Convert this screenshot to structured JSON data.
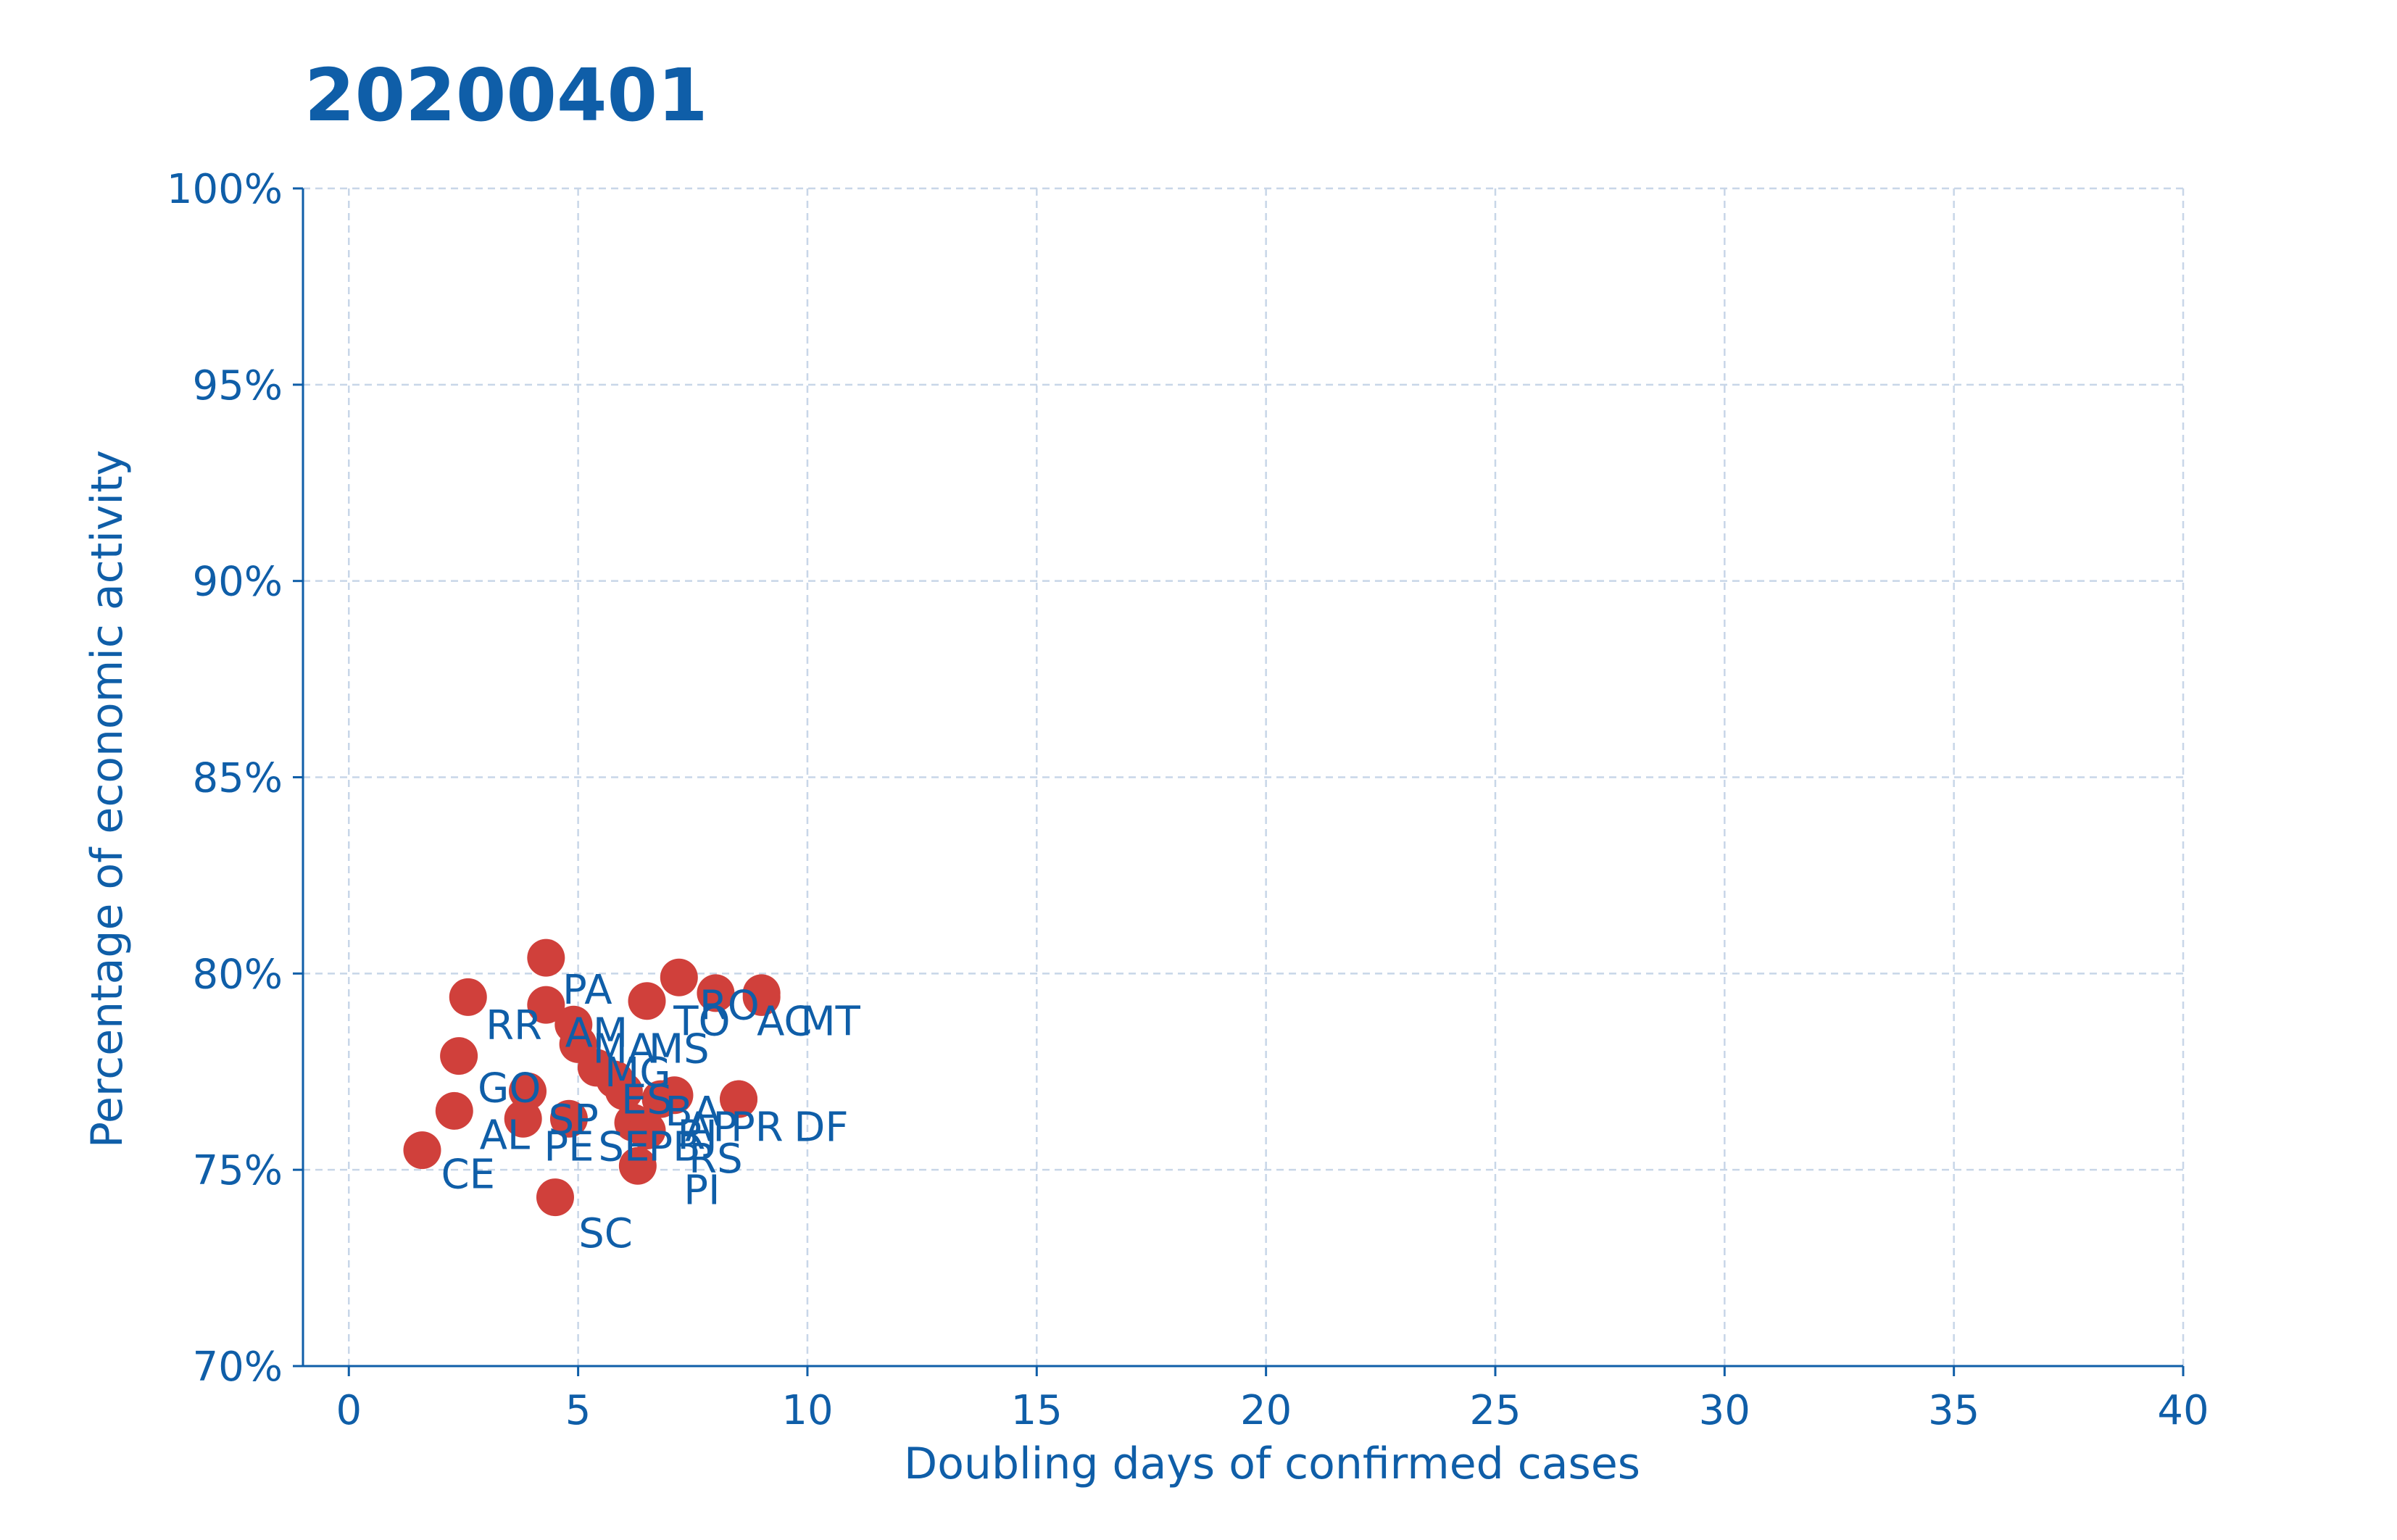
{
  "chart_data": {
    "type": "scatter",
    "title": "20200401",
    "xlabel": "Doubling days of confirmed cases",
    "ylabel": "Percentage of economic activity",
    "xlim": [
      -1,
      40
    ],
    "ylim": [
      70,
      100
    ],
    "x_ticks": [
      0,
      5,
      10,
      15,
      20,
      25,
      30,
      35,
      40
    ],
    "x_tick_labels": [
      "0",
      "5",
      "10",
      "15",
      "20",
      "25",
      "30",
      "35",
      "40"
    ],
    "y_ticks": [
      70,
      75,
      80,
      85,
      90,
      95,
      100
    ],
    "y_tick_labels": [
      "70%",
      "75%",
      "80%",
      "85%",
      "90%",
      "95%",
      "100%"
    ],
    "grid": true,
    "point_color": "#d0403b",
    "text_color": "#0f5ea8",
    "grid_color": "#c8d6e8",
    "points": [
      {
        "label": "CE",
        "x": 1.6,
        "y": 75.5
      },
      {
        "label": "AL",
        "x": 2.3,
        "y": 76.5
      },
      {
        "label": "RR",
        "x": 2.4,
        "y": 77.9
      },
      {
        "label": "PA",
        "x": 2.6,
        "y": 79.4
      },
      {
        "label": "GO",
        "x": 3.9,
        "y": 77.0
      },
      {
        "label": "PE",
        "x": 3.8,
        "y": 76.3
      },
      {
        "label": "SP",
        "x": 4.8,
        "y": 76.3
      },
      {
        "label": "SC",
        "x": 4.5,
        "y": 74.3
      },
      {
        "label": "AM",
        "x": 4.3,
        "y": 79.2
      },
      {
        "label": "",
        "x": 4.3,
        "y": 80.4
      },
      {
        "label": "MA",
        "x": 4.9,
        "y": 78.7
      },
      {
        "label": "MS",
        "x": 5.0,
        "y": 78.2
      },
      {
        "label": "MG",
        "x": 5.4,
        "y": 77.6
      },
      {
        "label": "ES",
        "x": 5.8,
        "y": 77.3
      },
      {
        "label": "SE",
        "x": 6.0,
        "y": 77.0
      },
      {
        "label": "PB",
        "x": 6.2,
        "y": 76.2
      },
      {
        "label": "RS",
        "x": 6.3,
        "y": 75.1
      },
      {
        "label": "PI",
        "x": 6.5,
        "y": 76.0
      },
      {
        "label": "BA",
        "x": 6.8,
        "y": 76.8
      },
      {
        "label": "RJ",
        "x": 7.1,
        "y": 76.9
      },
      {
        "label": "AP",
        "x": 6.5,
        "y": 79.3
      },
      {
        "label": "RO",
        "x": 7.2,
        "y": 79.9
      },
      {
        "label": "TO",
        "x": 8.0,
        "y": 79.5
      },
      {
        "label": "AC",
        "x": 9.0,
        "y": 79.5
      },
      {
        "label": "MT",
        "x": 9.0,
        "y": 79.4
      },
      {
        "label": "PR",
        "x": 8.5,
        "y": 76.8
      },
      {
        "label": "DF",
        "x": 8.5,
        "y": 76.8
      }
    ],
    "labels": [
      {
        "text": "PA",
        "x": 5.2,
        "y": 79.6
      },
      {
        "text": "RO",
        "x": 8.3,
        "y": 79.2
      },
      {
        "text": "TO",
        "x": 7.7,
        "y": 78.8
      },
      {
        "text": "AC",
        "x": 9.5,
        "y": 78.8
      },
      {
        "text": "MT",
        "x": 10.5,
        "y": 78.8
      },
      {
        "text": "RR",
        "x": 3.6,
        "y": 78.7
      },
      {
        "text": "AM",
        "x": 5.4,
        "y": 78.5
      },
      {
        "text": "MA",
        "x": 6.0,
        "y": 78.1
      },
      {
        "text": "MS",
        "x": 7.2,
        "y": 78.1
      },
      {
        "text": "MG",
        "x": 6.3,
        "y": 77.5
      },
      {
        "text": "GO",
        "x": 3.5,
        "y": 77.1
      },
      {
        "text": "ES",
        "x": 6.5,
        "y": 76.8
      },
      {
        "text": "BA",
        "x": 7.5,
        "y": 76.5
      },
      {
        "text": "SP",
        "x": 4.9,
        "y": 76.3
      },
      {
        "text": "AP",
        "x": 7.9,
        "y": 76.1
      },
      {
        "text": "PR",
        "x": 8.9,
        "y": 76.1
      },
      {
        "text": "DF",
        "x": 10.3,
        "y": 76.1
      },
      {
        "text": "RJ",
        "x": 7.6,
        "y": 75.9
      },
      {
        "text": "AL",
        "x": 3.4,
        "y": 75.9
      },
      {
        "text": "PE",
        "x": 4.8,
        "y": 75.6
      },
      {
        "text": "SE",
        "x": 6.0,
        "y": 75.6
      },
      {
        "text": "PB",
        "x": 7.1,
        "y": 75.6
      },
      {
        "text": "RS",
        "x": 8.0,
        "y": 75.3
      },
      {
        "text": "CE",
        "x": 2.6,
        "y": 74.9
      },
      {
        "text": "PI",
        "x": 7.7,
        "y": 74.5
      },
      {
        "text": "SC",
        "x": 5.6,
        "y": 73.4
      }
    ]
  }
}
